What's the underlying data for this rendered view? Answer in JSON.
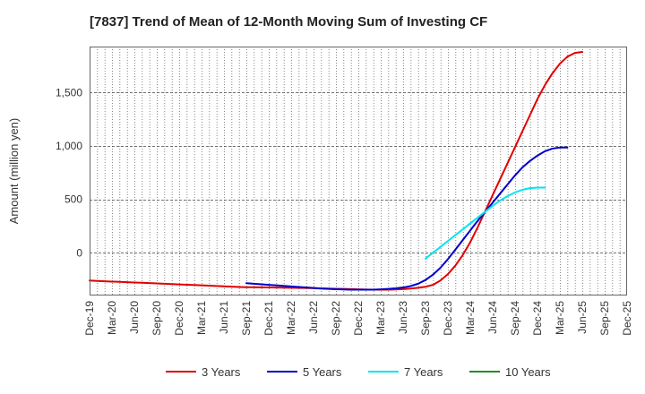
{
  "chart_data": {
    "type": "line",
    "title": "[7837]  Trend of Mean of 12-Month Moving Sum of Investing CF",
    "xlabel": "",
    "ylabel": "Amount (million yen)",
    "ylim": [
      -400,
      1930
    ],
    "yticks": [
      0,
      500,
      1000,
      1500
    ],
    "ytick_labels": [
      "0",
      "500",
      "1,000",
      "1,500"
    ],
    "x_start": "Dec-19",
    "x_end": "Dec-25",
    "xtick_labels": [
      "Dec-19",
      "Mar-20",
      "Jun-20",
      "Sep-20",
      "Dec-20",
      "Mar-21",
      "Jun-21",
      "Sep-21",
      "Dec-21",
      "Mar-22",
      "Jun-22",
      "Sep-22",
      "Dec-22",
      "Mar-23",
      "Jun-23",
      "Sep-23",
      "Dec-23",
      "Mar-24",
      "Jun-24",
      "Sep-24",
      "Dec-24",
      "Mar-25",
      "Jun-25",
      "Sep-25",
      "Dec-25"
    ],
    "grid": true,
    "legend_position": "bottom",
    "series": [
      {
        "name": "3 Years",
        "color": "#e00000",
        "start_month": 0,
        "values": [
          -260,
          -264,
          -267,
          -270,
          -272,
          -275,
          -278,
          -281,
          -284,
          -287,
          -290,
          -293,
          -296,
          -299,
          -302,
          -305,
          -308,
          -311,
          -314,
          -317,
          -320,
          -322,
          -323,
          -324,
          -325,
          -326,
          -327,
          -328,
          -329,
          -330,
          -331,
          -333,
          -335,
          -337,
          -338,
          -340,
          -342,
          -344,
          -345,
          -345,
          -345,
          -343,
          -340,
          -335,
          -328,
          -318,
          -300,
          -260,
          -200,
          -120,
          -20,
          100,
          240,
          390,
          540,
          690,
          840,
          990,
          1140,
          1290,
          1440,
          1570,
          1680,
          1770,
          1835,
          1870,
          1880
        ]
      },
      {
        "name": "5 Years",
        "color": "#0000cc",
        "start_month": 21,
        "values": [
          -285,
          -290,
          -295,
          -300,
          -305,
          -310,
          -315,
          -320,
          -325,
          -330,
          -335,
          -338,
          -341,
          -343,
          -345,
          -346,
          -346,
          -345,
          -342,
          -338,
          -333,
          -325,
          -312,
          -290,
          -255,
          -205,
          -140,
          -60,
          30,
          120,
          210,
          300,
          385,
          470,
          555,
          640,
          725,
          800,
          860,
          910,
          950,
          975,
          985,
          985
        ]
      },
      {
        "name": "7 Years",
        "color": "#00e5ee",
        "start_month": 45,
        "values": [
          -55,
          0,
          55,
          110,
          165,
          220,
          275,
          330,
          385,
          440,
          490,
          530,
          565,
          590,
          605,
          610,
          610
        ]
      },
      {
        "name": "10 Years",
        "color": "#228b22",
        "start_month": 0,
        "values": []
      }
    ]
  }
}
